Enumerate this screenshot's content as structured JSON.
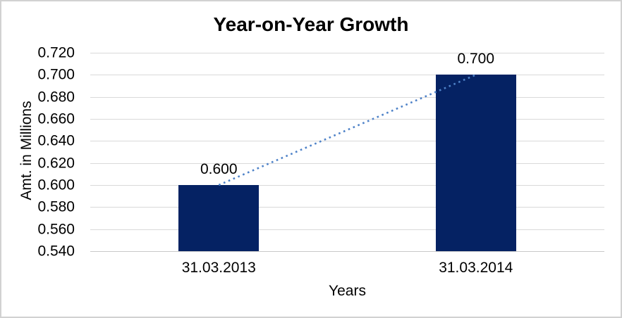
{
  "frame": {
    "background": "#ffffff",
    "border_color": "#d1d1d1"
  },
  "chart_data": {
    "type": "bar",
    "title": "Year-on-Year Growth",
    "xlabel": "Years",
    "ylabel": "Amt. in Millions",
    "categories": [
      "31.03.2013",
      "31.03.2014"
    ],
    "series": [
      {
        "name": "Amt. in Millions",
        "values": [
          0.6,
          0.7
        ]
      }
    ],
    "data_labels": [
      "0.600",
      "0.700"
    ],
    "ylim": [
      0.54,
      0.72
    ],
    "ytick_step": 0.02,
    "ytick_labels": [
      "0.720",
      "0.700",
      "0.680",
      "0.660",
      "0.640",
      "0.620",
      "0.600",
      "0.580",
      "0.560",
      "0.540"
    ],
    "grid": true,
    "legend": "none",
    "trendline": {
      "style": "dotted",
      "connects_values": [
        0.6,
        0.7
      ]
    },
    "colors": {
      "bar": "#052263",
      "trendline": "#4e82c8",
      "gridline": "#d9d9d9",
      "axis_line": "#c9c9c9",
      "text": "#000000"
    }
  }
}
